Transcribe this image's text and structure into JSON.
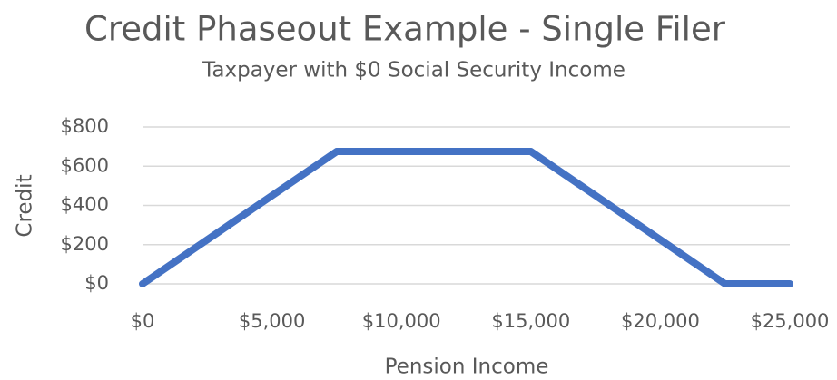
{
  "chart_data": {
    "type": "line",
    "title": "Credit Phaseout Example - Single Filer",
    "subtitle": "Taxpayer with $0 Social Security Income",
    "x_label": "Pension Income",
    "y_label": "Credit",
    "x": [
      0,
      7500,
      15000,
      22500,
      25000
    ],
    "series": [
      {
        "name": "Credit",
        "color": "#4472c4",
        "values": [
          0,
          675,
          675,
          0,
          0
        ]
      }
    ],
    "xlim": [
      0,
      25000
    ],
    "xticks": [
      {
        "value": 0,
        "label": "$0"
      },
      {
        "value": 5000,
        "label": "$5,000"
      },
      {
        "value": 10000,
        "label": "$10,000"
      },
      {
        "value": 15000,
        "label": "$15,000"
      },
      {
        "value": 20000,
        "label": "$20,000"
      },
      {
        "value": 25000,
        "label": "$25,000"
      }
    ],
    "ylim": [
      0,
      800
    ],
    "yticks": [
      {
        "value": 0,
        "label": "$0"
      },
      {
        "value": 200,
        "label": "$200"
      },
      {
        "value": 400,
        "label": "$400"
      },
      {
        "value": 600,
        "label": "$600"
      },
      {
        "value": 800,
        "label": "$800"
      }
    ],
    "grid": true
  }
}
